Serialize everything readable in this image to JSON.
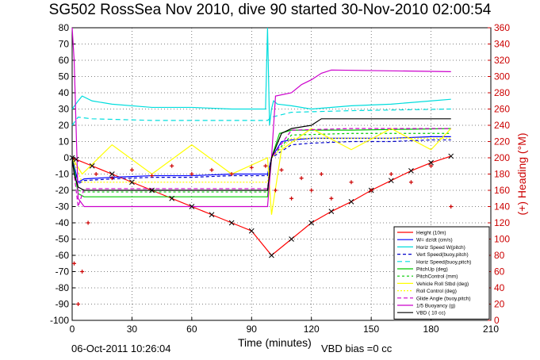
{
  "title": "SG502 RossSea Nov 2010, dive 90 started 30-Nov-2010 02:00:54",
  "footer": {
    "timestamp": "06-Oct-2011 10:26:04",
    "vbd_bias": "VBD bias =0 cc"
  },
  "chart_data": {
    "type": "line",
    "xlabel": "Time (minutes)",
    "ylabel_right": "(+) Heading (°M)",
    "xlim": [
      0,
      210
    ],
    "ylim_left": [
      -100,
      80
    ],
    "ylim_right": [
      0,
      360
    ],
    "x_ticks": [
      0,
      30,
      60,
      90,
      120,
      150,
      180,
      210
    ],
    "y_ticks_left": [
      -100,
      -90,
      -80,
      -70,
      -60,
      -50,
      -40,
      -30,
      -20,
      -10,
      0,
      10,
      20,
      30,
      40,
      50,
      60,
      70,
      80
    ],
    "y_ticks_right": [
      0,
      20,
      40,
      60,
      80,
      100,
      120,
      140,
      160,
      180,
      200,
      220,
      240,
      260,
      280,
      300,
      320,
      340,
      360
    ],
    "grid": true,
    "legend_position": "bottom-right",
    "colors": {
      "height": "#ff0000",
      "w": "#0000ff",
      "horiz_w": "#00dddd",
      "vert_speed": "#0000cc",
      "horiz_speed": "#00dddd",
      "pitch_up": "#00cc00",
      "pitch_control": "#00cc00",
      "vehicle_roll": "#ffff00",
      "roll_control": "#ffff00",
      "glide_angle": "#cc00cc",
      "buoyancy": "#cc00cc",
      "vbd": "#000000",
      "heading": "#cc0000"
    },
    "series": [
      {
        "name": "Height (10m)",
        "key": "height",
        "dash": "",
        "x": [
          0,
          2,
          10,
          20,
          30,
          40,
          50,
          60,
          70,
          80,
          90,
          100,
          110,
          120,
          130,
          140,
          150,
          160,
          170,
          180,
          190
        ],
        "y": [
          0,
          -1,
          -5,
          -10,
          -15,
          -20,
          -25,
          -30,
          -35,
          -40,
          -45,
          -60,
          -50,
          -40,
          -33,
          -27,
          -20,
          -14,
          -8,
          -3,
          1
        ]
      },
      {
        "name": "W= dz/dt (cm/s)",
        "key": "w",
        "dash": "",
        "x": [
          0,
          3,
          6,
          20,
          40,
          60,
          80,
          98,
          100,
          105,
          110,
          120,
          140,
          160,
          180,
          190
        ],
        "y": [
          0,
          -15,
          -13,
          -12,
          -11,
          -11,
          -10,
          -10,
          0,
          10,
          11,
          12,
          12,
          12,
          13,
          13
        ]
      },
      {
        "name": "Horiz Speed W(pitch)",
        "key": "horiz_w",
        "dash": "",
        "x": [
          0,
          3,
          5,
          10,
          20,
          40,
          60,
          80,
          97,
          98,
          99,
          100,
          101,
          103,
          110,
          120,
          140,
          160,
          180,
          190
        ],
        "y": [
          30,
          35,
          38,
          35,
          33,
          31,
          31,
          30,
          30,
          80,
          20,
          30,
          35,
          33,
          32,
          30,
          32,
          33,
          35,
          36
        ]
      },
      {
        "name": "Vert Speed(buoy,pitch)",
        "key": "vert_speed",
        "dash": "4,3",
        "x": [
          0,
          3,
          6,
          20,
          40,
          60,
          80,
          98,
          100,
          110,
          120,
          140,
          160,
          180,
          190
        ],
        "y": [
          0,
          -16,
          -14,
          -13,
          -12,
          -12,
          -11,
          -11,
          0,
          8,
          9,
          10,
          10,
          11,
          11
        ]
      },
      {
        "name": "Horiz Speed(buoy,pitch)",
        "key": "horiz_speed",
        "dash": "6,4",
        "x": [
          0,
          3,
          10,
          40,
          80,
          98,
          100,
          110,
          140,
          190
        ],
        "y": [
          20,
          25,
          24,
          23,
          23,
          23,
          25,
          28,
          29,
          30
        ]
      },
      {
        "name": "PitchUp (deg)",
        "key": "pitch_up",
        "dash": "",
        "x": [
          0,
          3,
          6,
          40,
          98,
          100,
          104,
          110,
          140,
          190
        ],
        "y": [
          0,
          -22,
          -24,
          -24,
          -24,
          0,
          15,
          17,
          17,
          18
        ]
      },
      {
        "name": "PitchControl (mm)",
        "key": "pitch_control",
        "dash": "3,3",
        "x": [
          0,
          3,
          6,
          40,
          98,
          100,
          110,
          140,
          190
        ],
        "y": [
          0,
          -20,
          -21,
          -21,
          -21,
          0,
          14,
          15,
          15
        ]
      },
      {
        "name": "Vehicle Roll Stbd (deg)",
        "key": "vehicle_roll",
        "dash": "",
        "x": [
          0,
          5,
          20,
          40,
          60,
          80,
          98,
          100,
          105,
          120,
          140,
          160,
          180,
          190
        ],
        "y": [
          0,
          -10,
          8,
          -10,
          8,
          -10,
          0,
          -35,
          5,
          18,
          5,
          18,
          5,
          18
        ]
      },
      {
        "name": "Roll Control (deg)",
        "key": "roll_control",
        "dash": "2,2",
        "x": [
          0,
          5,
          40,
          98,
          100,
          110,
          140,
          190
        ],
        "y": [
          0,
          -15,
          -15,
          -15,
          0,
          12,
          12,
          12
        ]
      },
      {
        "name": "Glide Angle (buoy,pitch)",
        "key": "glide_angle",
        "dash": "5,3",
        "x": [
          0,
          3,
          6,
          40,
          98,
          100,
          110,
          140,
          190
        ],
        "y": [
          0,
          -30,
          -19,
          -19,
          -19,
          0,
          17,
          18,
          18
        ]
      },
      {
        "name": "1/5 Buoyancy (g)",
        "key": "buoyancy",
        "dash": "",
        "x": [
          0,
          1,
          3,
          6,
          40,
          98,
          100,
          102,
          110,
          115,
          120,
          125,
          130,
          190
        ],
        "y": [
          80,
          60,
          -25,
          -30,
          -30,
          -30,
          0,
          38,
          40,
          45,
          48,
          52,
          54,
          53
        ]
      },
      {
        "name": "VBD ( 10 cc)",
        "key": "vbd",
        "dash": "",
        "x": [
          0,
          1,
          3,
          6,
          40,
          98,
          100,
          105,
          110,
          120,
          125,
          190
        ],
        "y": [
          0,
          -10,
          -18,
          -20,
          -20,
          -20,
          0,
          15,
          18,
          20,
          24,
          24
        ]
      }
    ],
    "heading": {
      "name": "Heading",
      "x": [
        1,
        3,
        5,
        8,
        12,
        20,
        30,
        40,
        50,
        60,
        70,
        80,
        90,
        97,
        102,
        105,
        110,
        115,
        120,
        125,
        130,
        140,
        150,
        160,
        170,
        180,
        190
      ],
      "y": [
        70,
        20,
        60,
        120,
        180,
        175,
        185,
        178,
        190,
        180,
        185,
        180,
        188,
        190,
        160,
        185,
        150,
        175,
        160,
        180,
        150,
        170,
        160,
        180,
        170,
        190,
        140
      ]
    }
  }
}
